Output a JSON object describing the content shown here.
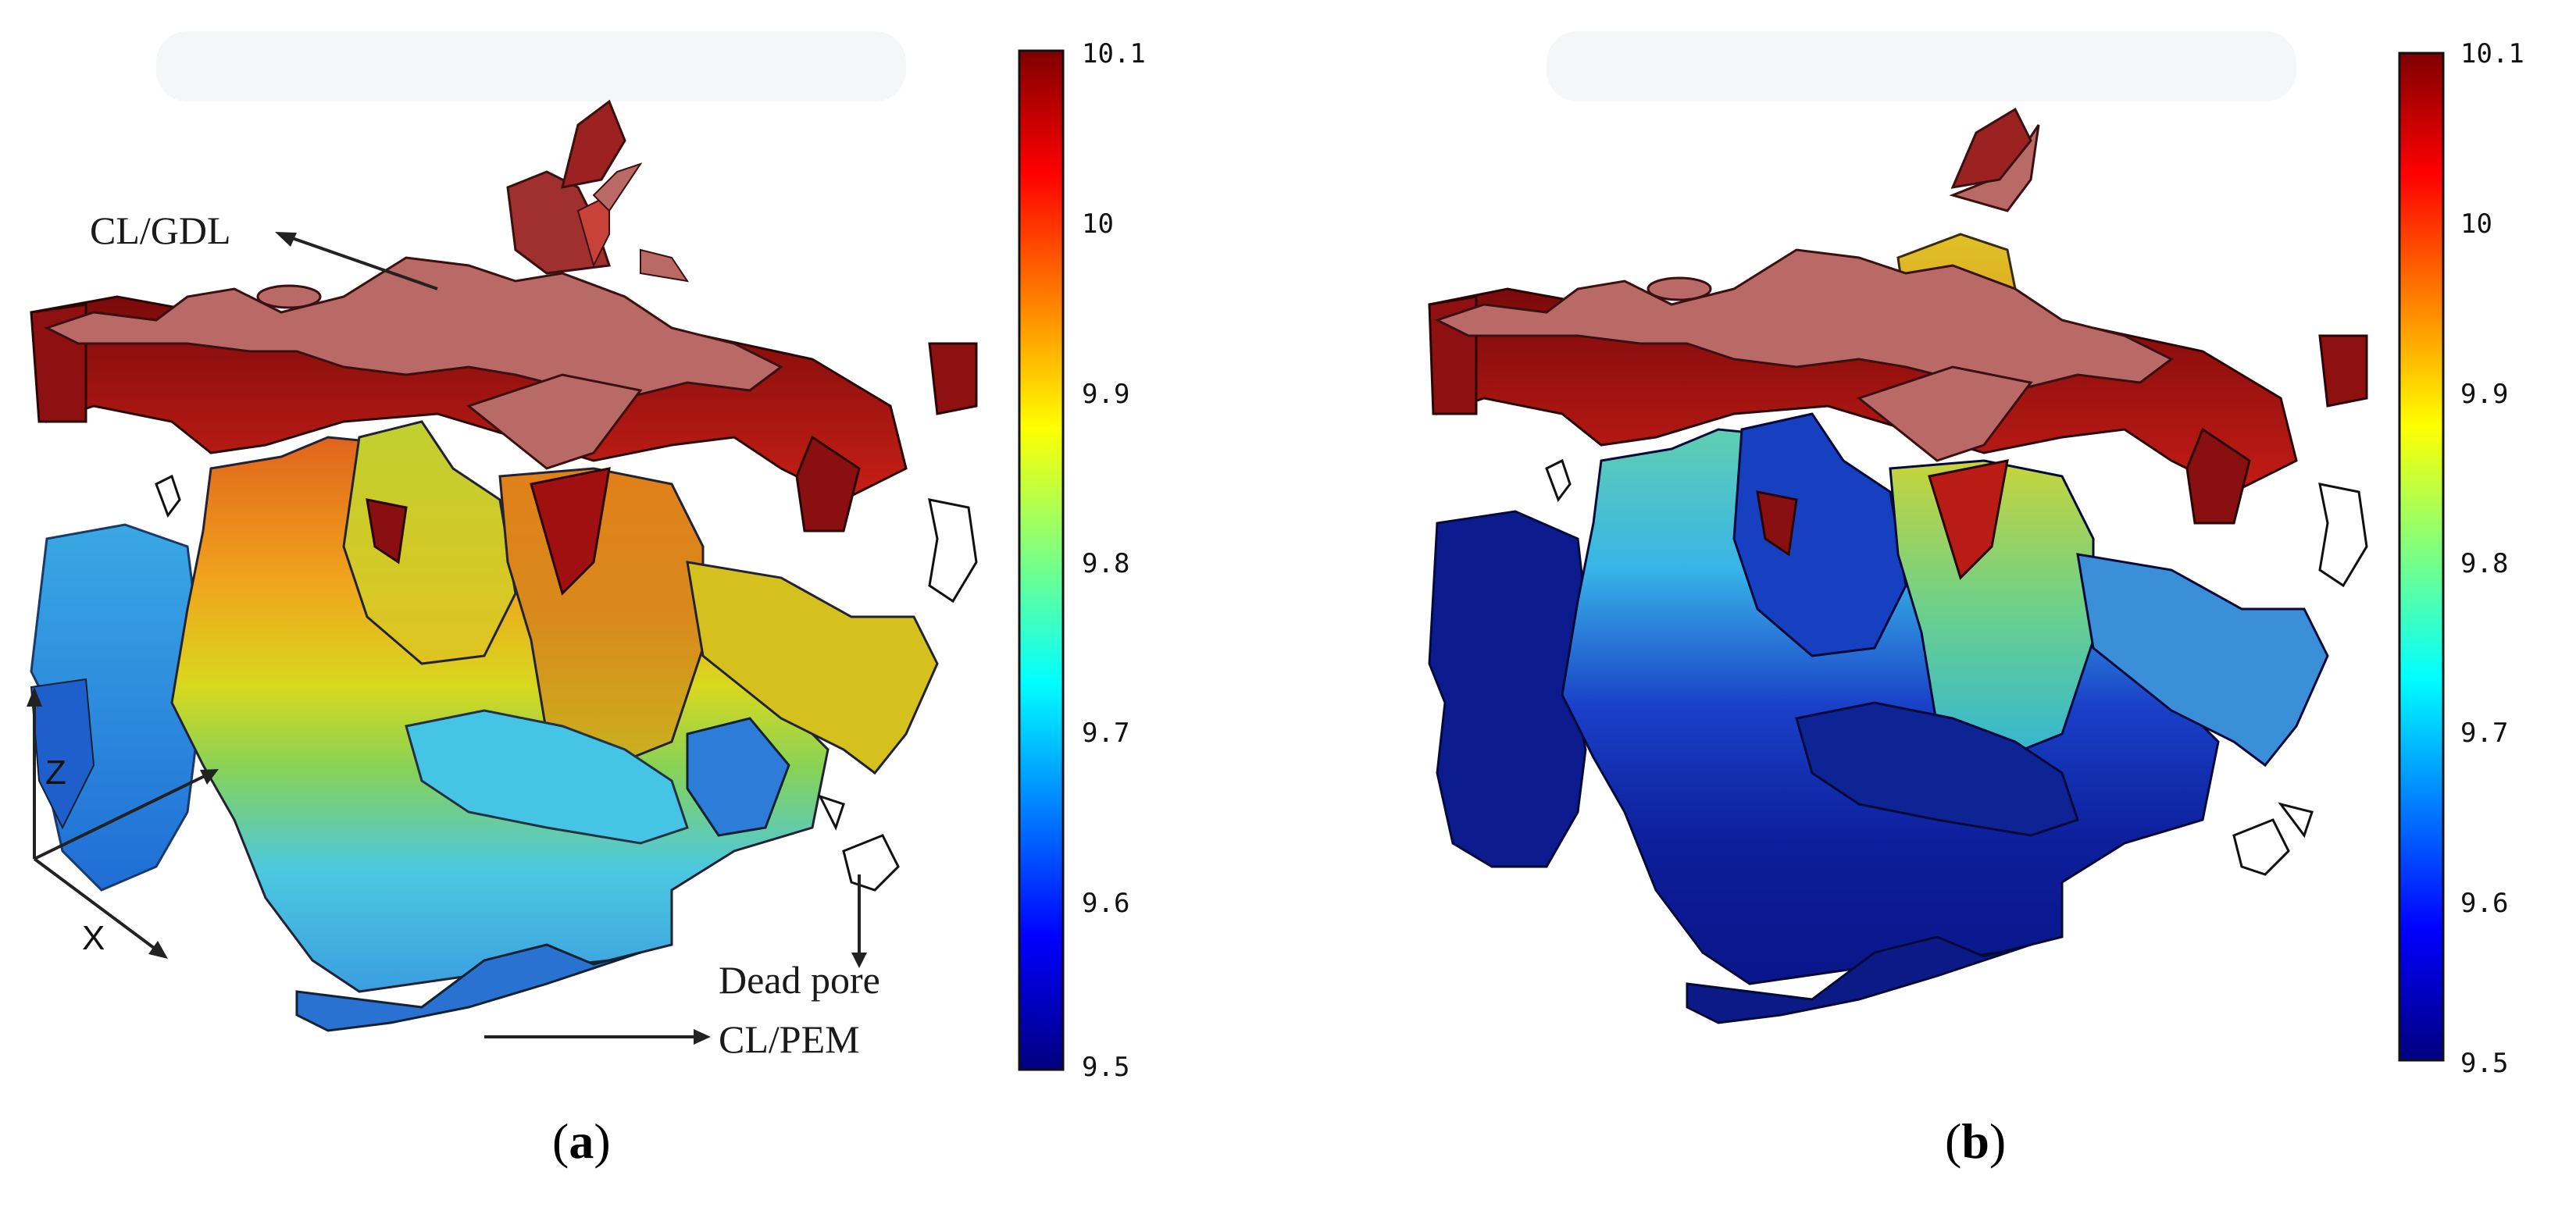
{
  "figure": {
    "panels": [
      {
        "id": "a",
        "caption_letter": "a",
        "colorbar": {
          "ticks": [
            "10.1",
            "10",
            "9.9",
            "9.8",
            "9.7",
            "9.6",
            "9.5"
          ],
          "min": 9.5,
          "max": 10.1,
          "colormap": "jet"
        },
        "annotations": {
          "top_interface": "CL/GDL",
          "bottom_interface": "CL/PEM",
          "dead_pore": "Dead pore"
        },
        "axes": {
          "vertical": "Z",
          "horizontal": "X"
        }
      },
      {
        "id": "b",
        "caption_letter": "b",
        "colorbar": {
          "ticks": [
            "10.1",
            "10",
            "9.9",
            "9.8",
            "9.7",
            "9.6",
            "9.5"
          ],
          "min": 9.5,
          "max": 10.1,
          "colormap": "jet"
        }
      }
    ],
    "colors": {
      "top_face": "#b96a66",
      "dark_red": "#8b0f0f",
      "red": "#d42a1a",
      "orange": "#e8781c",
      "yellow": "#d6d21e",
      "green": "#7fcf5a",
      "cyan": "#3fc8e6",
      "blue": "#1f6fd6",
      "navy": "#0a1a8c"
    }
  }
}
